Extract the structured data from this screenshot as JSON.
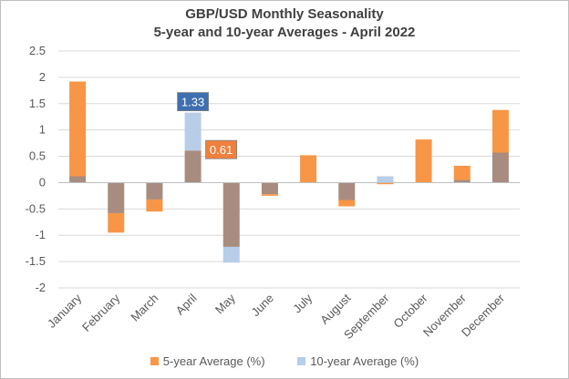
{
  "chart_data": {
    "type": "bar",
    "title": "GBP/USD Monthly Seasonality",
    "subtitle": "5-year and 10-year Averages - April 2022",
    "categories": [
      "January",
      "February",
      "March",
      "April",
      "May",
      "June",
      "July",
      "August",
      "September",
      "October",
      "November",
      "December"
    ],
    "series": [
      {
        "name": "5-year Average (%)",
        "color": "#f79646",
        "values": [
          1.92,
          -0.95,
          -0.55,
          0.61,
          -1.22,
          -0.25,
          0.52,
          -0.45,
          -0.03,
          0.82,
          0.32,
          1.38
        ]
      },
      {
        "name": "10-year Average (%)",
        "color": "#b7cde8",
        "values": [
          0.12,
          -0.58,
          -0.32,
          1.33,
          -1.52,
          -0.22,
          0.0,
          -0.33,
          0.12,
          0.0,
          0.05,
          0.57
        ]
      }
    ],
    "overlap_color": "#a88c80",
    "data_labels": [
      {
        "category": "April",
        "series": "10-year Average (%)",
        "text": "1.33",
        "bg": "#3f6fb0"
      },
      {
        "category": "April",
        "series": "5-year Average (%)",
        "text": "0.61",
        "bg": "#f0803c"
      }
    ],
    "ylim": [
      -2,
      2.5
    ],
    "yticks": [
      -2,
      -1.5,
      -1,
      -0.5,
      0,
      0.5,
      1,
      1.5,
      2,
      2.5
    ],
    "ytick_labels": [
      "-2",
      "-1.5",
      "-1",
      "-0.5",
      "0",
      "0.5",
      "1",
      "1.5",
      "2",
      "2.5"
    ],
    "grid": true,
    "legend_position": "bottom"
  }
}
